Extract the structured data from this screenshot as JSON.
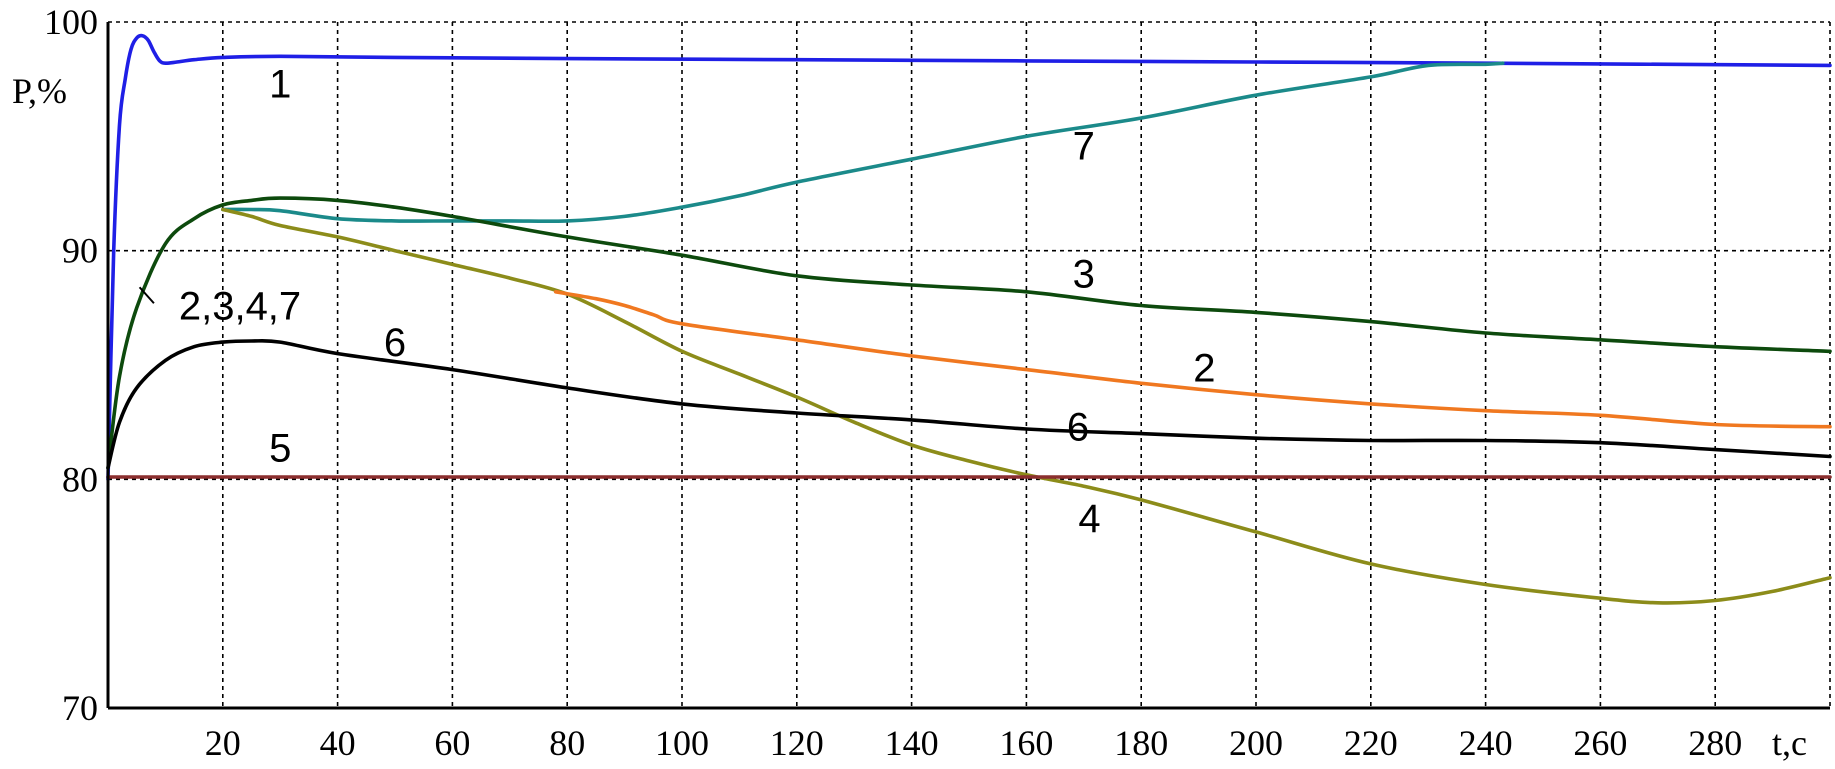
{
  "chart_data": {
    "type": "line",
    "title": "",
    "xlabel": "t,c",
    "ylabel": "P,%",
    "xlim": [
      0,
      300
    ],
    "ylim": [
      70,
      100
    ],
    "grid": true,
    "x_ticks": [
      "20",
      "40",
      "60",
      "80",
      "100",
      "120",
      "140",
      "160",
      "180",
      "200",
      "220",
      "240",
      "260",
      "280"
    ],
    "y_ticks": [
      "100",
      "90",
      "80",
      "70"
    ],
    "series": [
      {
        "name": "1",
        "color": "#1f1fe6",
        "x": [
          0,
          1,
          2,
          3,
          4,
          5,
          6,
          7,
          8,
          9,
          10,
          12,
          15,
          20,
          30,
          50,
          80,
          120,
          160,
          200,
          240,
          300
        ],
        "y": [
          80,
          90,
          95.5,
          97.5,
          98.8,
          99.3,
          99.4,
          99.2,
          98.7,
          98.3,
          98.2,
          98.25,
          98.35,
          98.45,
          98.5,
          98.45,
          98.4,
          98.35,
          98.3,
          98.25,
          98.2,
          98.1
        ]
      },
      {
        "name": "7",
        "color": "#1b8a8a",
        "x": [
          20,
          25,
          30,
          40,
          50,
          60,
          70,
          80,
          90,
          100,
          110,
          120,
          140,
          160,
          180,
          200,
          220,
          230,
          240,
          243
        ],
        "y": [
          91.8,
          91.8,
          91.75,
          91.4,
          91.3,
          91.3,
          91.3,
          91.3,
          91.5,
          91.9,
          92.4,
          93.0,
          94.0,
          95.0,
          95.8,
          96.8,
          97.6,
          98.1,
          98.15,
          98.2
        ]
      },
      {
        "name": "3",
        "color": "#0d4a0d",
        "x": [
          0,
          2,
          5,
          10,
          15,
          20,
          25,
          30,
          40,
          50,
          60,
          80,
          100,
          120,
          140,
          160,
          180,
          200,
          220,
          240,
          260,
          280,
          300
        ],
        "y": [
          80.5,
          84.5,
          87.5,
          90.3,
          91.4,
          92.0,
          92.2,
          92.3,
          92.2,
          91.9,
          91.5,
          90.6,
          89.8,
          88.9,
          88.5,
          88.2,
          87.6,
          87.3,
          86.9,
          86.4,
          86.1,
          85.8,
          85.6
        ]
      },
      {
        "name": "4",
        "color": "#8c8c1a",
        "x": [
          20,
          25,
          30,
          40,
          50,
          60,
          70,
          80,
          90,
          100,
          110,
          120,
          130,
          140,
          150,
          160,
          170,
          180,
          200,
          220,
          240,
          260,
          270,
          280,
          290,
          300
        ],
        "y": [
          91.8,
          91.5,
          91.1,
          90.6,
          90.0,
          89.4,
          88.8,
          88.1,
          86.9,
          85.6,
          84.6,
          83.6,
          82.5,
          81.5,
          80.8,
          80.2,
          79.7,
          79.1,
          77.7,
          76.3,
          75.4,
          74.8,
          74.6,
          74.7,
          75.1,
          75.7
        ]
      },
      {
        "name": "2",
        "color": "#f07820",
        "x": [
          78,
          85,
          90,
          95,
          100,
          120,
          140,
          160,
          180,
          200,
          220,
          240,
          260,
          280,
          300
        ],
        "y": [
          88.2,
          87.9,
          87.6,
          87.2,
          86.8,
          86.1,
          85.4,
          84.8,
          84.2,
          83.7,
          83.3,
          83.0,
          82.8,
          82.4,
          82.3
        ]
      },
      {
        "name": "6",
        "color": "#000000",
        "x": [
          0,
          2,
          5,
          10,
          15,
          20,
          25,
          30,
          40,
          60,
          80,
          100,
          120,
          140,
          160,
          180,
          200,
          220,
          240,
          260,
          280,
          300
        ],
        "y": [
          80.5,
          82.5,
          84.0,
          85.2,
          85.8,
          86.0,
          86.05,
          86.0,
          85.5,
          84.8,
          84.0,
          83.3,
          82.9,
          82.6,
          82.2,
          82.0,
          81.8,
          81.7,
          81.7,
          81.6,
          81.3,
          81.0
        ]
      },
      {
        "name": "5",
        "color": "#8b2f2f",
        "x": [
          0,
          300
        ],
        "y": [
          80.1,
          80.1
        ]
      }
    ],
    "curve_labels": [
      {
        "text": "1",
        "x": 30,
        "y": 97.3
      },
      {
        "text": "7",
        "x": 170,
        "y": 94.6
      },
      {
        "text": "3",
        "x": 170,
        "y": 89.0
      },
      {
        "text": "2,3,4,7",
        "x": 23,
        "y": 87.6
      },
      {
        "text": "6",
        "x": 50,
        "y": 86.0
      },
      {
        "text": "2",
        "x": 191,
        "y": 84.9
      },
      {
        "text": "6",
        "x": 169,
        "y": 82.3
      },
      {
        "text": "5",
        "x": 30,
        "y": 81.4
      },
      {
        "text": "4",
        "x": 171,
        "y": 78.3
      }
    ]
  }
}
